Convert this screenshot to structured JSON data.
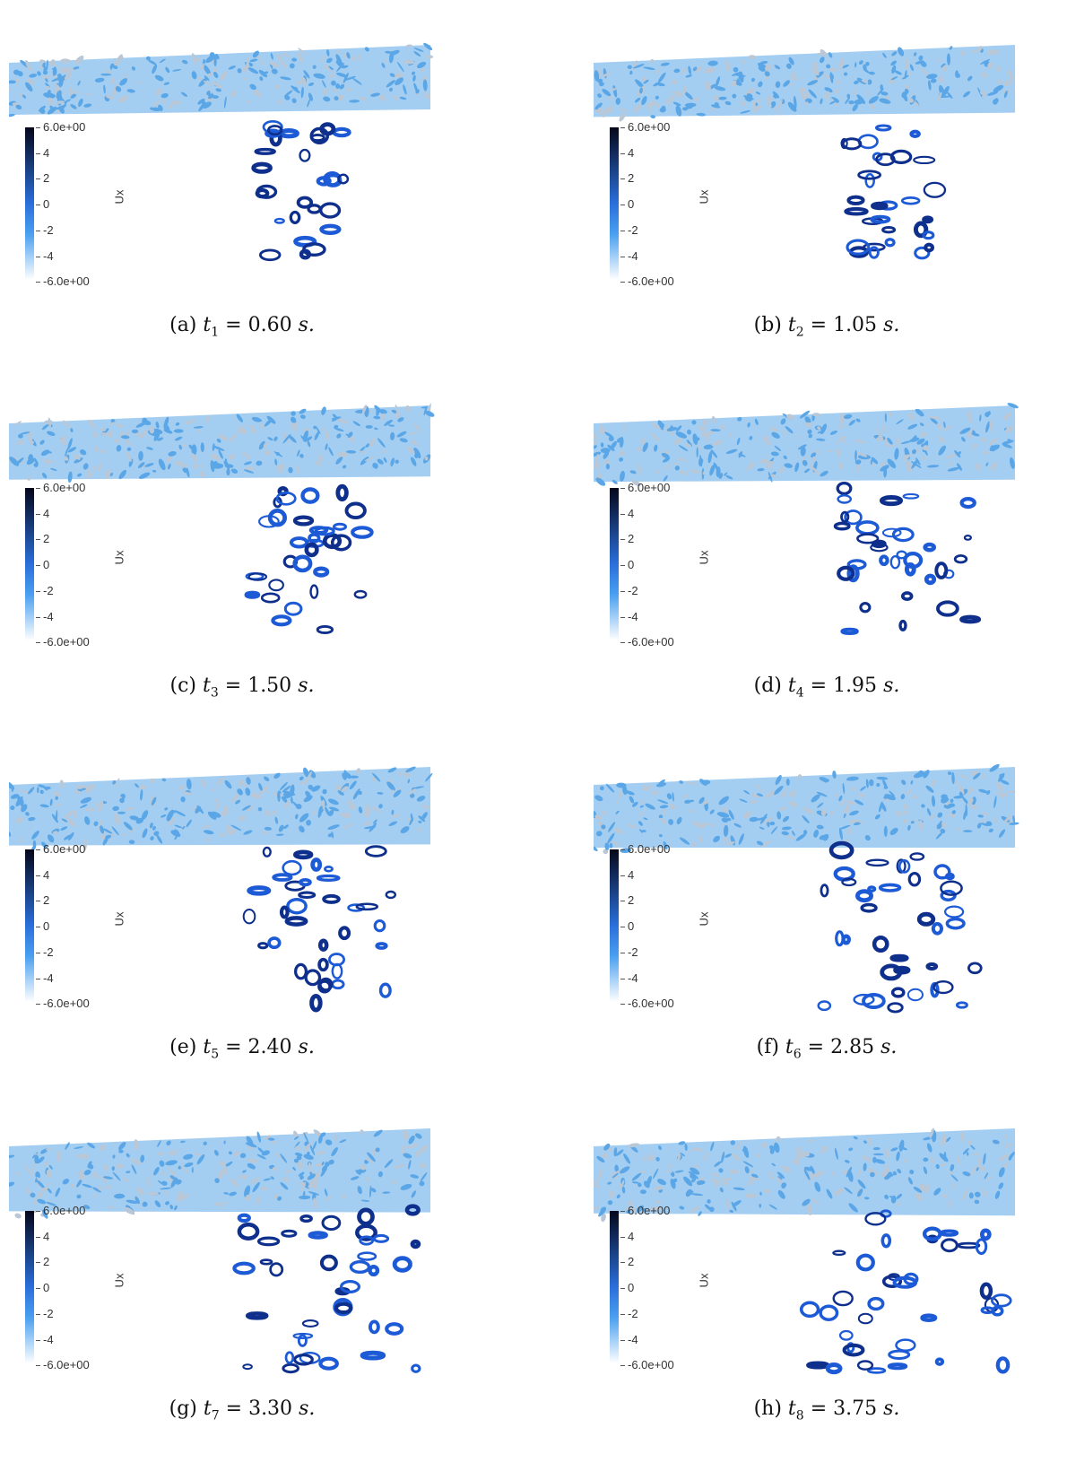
{
  "panels": [
    {
      "letter": "(a)",
      "var": "t",
      "sub": "1",
      "value": "= 0.60",
      "unit": "s."
    },
    {
      "letter": "(b)",
      "var": "t",
      "sub": "2",
      "value": "= 1.05",
      "unit": "s."
    },
    {
      "letter": "(c)",
      "var": "t",
      "sub": "3",
      "value": "= 1.50",
      "unit": "s."
    },
    {
      "letter": "(d)",
      "var": "t",
      "sub": "4",
      "value": "= 1.95",
      "unit": "s."
    },
    {
      "letter": "(e)",
      "var": "t",
      "sub": "5",
      "value": "= 2.40",
      "unit": "s."
    },
    {
      "letter": "(f)",
      "var": "t",
      "sub": "6",
      "value": "= 2.85",
      "unit": "s."
    },
    {
      "letter": "(g)",
      "var": "t",
      "sub": "7",
      "value": "= 3.30",
      "unit": "s."
    },
    {
      "letter": "(h)",
      "var": "t",
      "sub": "8",
      "value": "= 3.75",
      "unit": "s."
    }
  ],
  "colorbar": {
    "title": "Ux",
    "ticks": [
      "6.0e+00",
      "4",
      "2",
      "0",
      "-2",
      "-4",
      "-6.0e+00"
    ],
    "colors": {
      "top": "#05071a",
      "mid": "#2a6fdb",
      "low": "#4aa0f0",
      "bottom": "#ffffff"
    }
  },
  "colors": {
    "surface": "#5aa6e6",
    "surface_light": "#b9c7d6",
    "vortex": "#1d5ad6",
    "vortex_dark": "#0e2f8c"
  }
}
